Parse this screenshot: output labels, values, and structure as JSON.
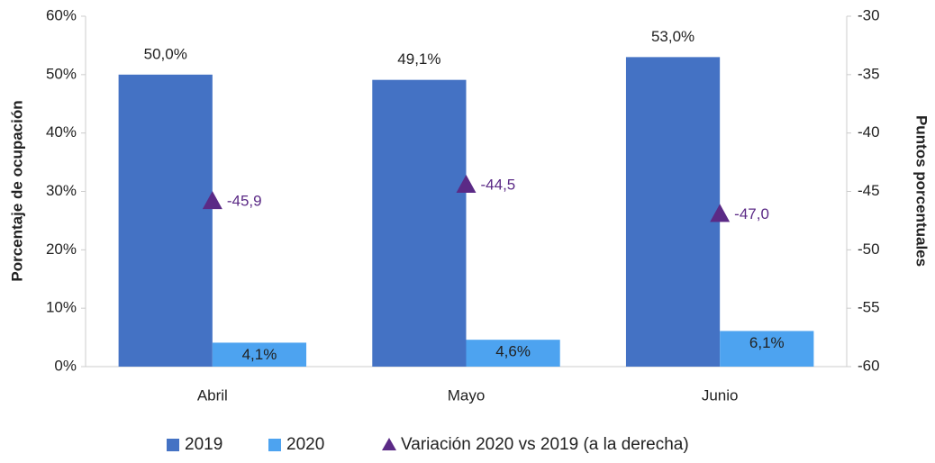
{
  "chart_data": {
    "type": "bar",
    "categories": [
      "Abril",
      "Mayo",
      "Junio"
    ],
    "series": [
      {
        "name": "2019",
        "color": "#4472c4",
        "values": [
          50.0,
          49.1,
          53.0
        ],
        "value_labels": [
          "50,0%",
          "49,1%",
          "53,0%"
        ]
      },
      {
        "name": "2020",
        "color": "#4da3f0",
        "values": [
          4.1,
          4.6,
          6.1
        ],
        "value_labels": [
          "4,1%",
          "4,6%",
          "6,1%"
        ]
      },
      {
        "name": "Variación 2020 vs 2019 (a la derecha)",
        "color": "#5b2a86",
        "marker": "triangle",
        "axis": "y2",
        "values": [
          -45.9,
          -44.5,
          -47.0
        ],
        "value_labels": [
          "-45,9",
          "-44,5",
          "-47,0"
        ]
      }
    ],
    "ylabel": "Porcentaje de ocupación",
    "y2label": "Puntos porcentuales",
    "ylim": [
      0,
      60
    ],
    "yticks": [
      {
        "value": 0,
        "label": "0%"
      },
      {
        "value": 10,
        "label": "10%"
      },
      {
        "value": 20,
        "label": "20%"
      },
      {
        "value": 30,
        "label": "30%"
      },
      {
        "value": 40,
        "label": "40%"
      },
      {
        "value": 50,
        "label": "50%"
      },
      {
        "value": 60,
        "label": "60%"
      }
    ],
    "y2lim": [
      -60,
      -30
    ],
    "y2ticks": [
      -60,
      -55,
      -50,
      -45,
      -40,
      -35,
      -30
    ],
    "grid": false,
    "legend": "bottom"
  }
}
